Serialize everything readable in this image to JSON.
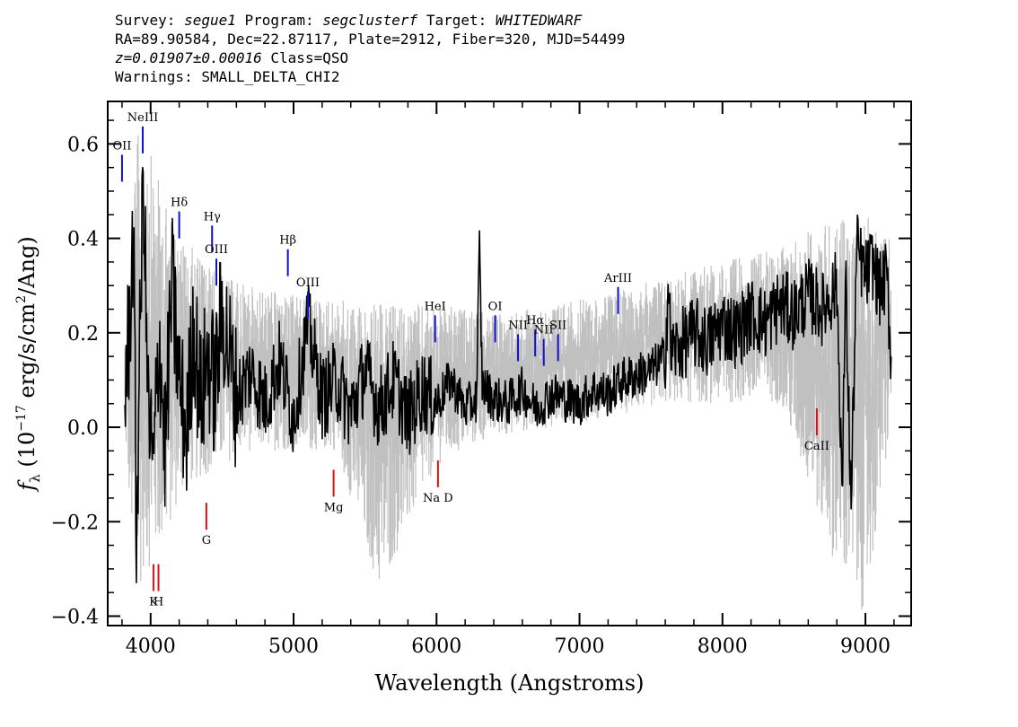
{
  "header": {
    "survey_label": "Survey:",
    "survey": "segue1",
    "program_label": "Program:",
    "program": "segclusterf",
    "target_label": "Target:",
    "target": "WHITEDWARF",
    "coords": "RA=89.90584, Dec=22.87117, Plate=2912, Fiber=320, MJD=54499",
    "redshift": "z=0.01907±0.00016",
    "class": "Class=QSO",
    "warnings": "Warnings: SMALL_DELTA_CHI2"
  },
  "chart_data": {
    "type": "line",
    "xlabel": "Wavelength (Angstroms)",
    "ylabel": "f_λ (10^-17 erg/s/cm²/Ang)",
    "ylabel_parts": {
      "main": "f",
      "sub": "λ",
      "open": " (10",
      "sup": "−17",
      "mid": " erg/s/cm",
      "sup2": "2",
      "close": "/Ang)"
    },
    "xlim": [
      3700,
      9320
    ],
    "ylim": [
      -0.42,
      0.69
    ],
    "xticks": [
      4000,
      5000,
      6000,
      7000,
      8000,
      9000
    ],
    "xtick_labels": [
      "4000",
      "5000",
      "6000",
      "7000",
      "8000",
      "9000"
    ],
    "yticks": [
      -0.4,
      -0.2,
      0.0,
      0.2,
      0.4,
      0.6
    ],
    "ytick_labels": [
      "−0.4",
      "−0.2",
      "0.0",
      "0.2",
      "0.4",
      "0.6"
    ],
    "colors": {
      "flux": "#000000",
      "error": "#c0c0c0",
      "emission": "#1010c8",
      "absorption": "#e01010"
    },
    "series": [
      {
        "role": "flux",
        "x": [
          3820,
          3850,
          3880,
          3900,
          3920,
          3950,
          3980,
          4020,
          4060,
          4100,
          4150,
          4200,
          4250,
          4300,
          4350,
          4400,
          4450,
          4500,
          4600,
          4700,
          4800,
          4900,
          5000,
          5100,
          5200,
          5300,
          5400,
          5500,
          5600,
          5700,
          5800,
          5900,
          6000,
          6100,
          6200,
          6280,
          6300,
          6320,
          6400,
          6500,
          6600,
          6700,
          6800,
          6900,
          7000,
          7100,
          7200,
          7300,
          7400,
          7500,
          7600,
          7620,
          7640,
          7700,
          7800,
          7900,
          8000,
          8100,
          8200,
          8300,
          8400,
          8500,
          8600,
          8700,
          8800,
          8840,
          8860,
          8900,
          8940,
          9000,
          9050,
          9100,
          9150,
          9180
        ],
        "y": [
          0.08,
          0.2,
          0.42,
          -0.25,
          0.1,
          0.55,
          0.05,
          -0.1,
          0.2,
          -0.05,
          0.3,
          0.1,
          -0.02,
          0.22,
          0.05,
          0.15,
          0.08,
          0.25,
          0.06,
          0.12,
          0.05,
          0.14,
          0.02,
          0.22,
          0.06,
          0.1,
          0.03,
          0.12,
          0.04,
          0.1,
          0.02,
          0.08,
          0.05,
          0.1,
          0.04,
          0.06,
          0.38,
          0.09,
          0.06,
          0.05,
          0.08,
          0.04,
          0.07,
          0.06,
          0.05,
          0.08,
          0.07,
          0.1,
          0.11,
          0.12,
          0.15,
          0.3,
          0.16,
          0.17,
          0.2,
          0.18,
          0.22,
          0.2,
          0.24,
          0.22,
          0.26,
          0.24,
          0.28,
          0.25,
          0.3,
          -0.15,
          0.33,
          -0.17,
          0.38,
          0.32,
          0.35,
          0.29,
          0.32,
          0.14
        ]
      },
      {
        "role": "error",
        "x": [
          3820,
          3900,
          3950,
          4000,
          4100,
          4200,
          4300,
          4400,
          4500,
          4700,
          5000,
          5300,
          5600,
          6000,
          6400,
          6800,
          7200,
          7600,
          8000,
          8400,
          8800,
          9000,
          9180
        ],
        "y_low": [
          -0.02,
          -0.4,
          -0.3,
          -0.3,
          -0.25,
          -0.15,
          -0.12,
          -0.1,
          -0.08,
          -0.05,
          -0.05,
          -0.05,
          -0.35,
          -0.08,
          -0.02,
          0.0,
          0.02,
          0.05,
          0.05,
          0.05,
          -0.3,
          -0.4,
          0.0
        ],
        "y_high": [
          0.2,
          0.6,
          0.68,
          0.58,
          0.48,
          0.4,
          0.38,
          0.35,
          0.32,
          0.3,
          0.28,
          0.27,
          0.26,
          0.26,
          0.24,
          0.26,
          0.28,
          0.32,
          0.35,
          0.38,
          0.45,
          0.45,
          0.4
        ]
      }
    ],
    "emission_lines": [
      {
        "label": "OII",
        "x": 3800,
        "y": 0.52
      },
      {
        "label": "NeIII",
        "x": 3945,
        "y": 0.58
      },
      {
        "label": "Hδ",
        "x": 4200,
        "y": 0.4
      },
      {
        "label": "Hγ",
        "x": 4430,
        "y": 0.37
      },
      {
        "label": "OIII",
        "x": 4460,
        "y": 0.3
      },
      {
        "label": "Hβ",
        "x": 4960,
        "y": 0.32
      },
      {
        "label": "OIII",
        "x": 5100,
        "y": 0.23
      },
      {
        "label": "HeI",
        "x": 5990,
        "y": 0.18
      },
      {
        "label": "OI",
        "x": 6410,
        "y": 0.18
      },
      {
        "label": "NII",
        "x": 6570,
        "y": 0.14
      },
      {
        "label": "Hα",
        "x": 6690,
        "y": 0.15
      },
      {
        "label": "NII",
        "x": 6750,
        "y": 0.13
      },
      {
        "label": "SII",
        "x": 6850,
        "y": 0.14
      },
      {
        "label": "ArIII",
        "x": 7270,
        "y": 0.24
      }
    ],
    "absorption_lines": [
      {
        "label": "K",
        "x": 4020,
        "y": -0.29
      },
      {
        "label": "H",
        "x": 4055,
        "y": -0.29
      },
      {
        "label": "G",
        "x": 4390,
        "y": -0.16
      },
      {
        "label": "Mg",
        "x": 5280,
        "y": -0.09
      },
      {
        "label": "Na D",
        "x": 6010,
        "y": -0.07
      },
      {
        "label": "CaII",
        "x": 8660,
        "y": 0.04
      }
    ]
  }
}
